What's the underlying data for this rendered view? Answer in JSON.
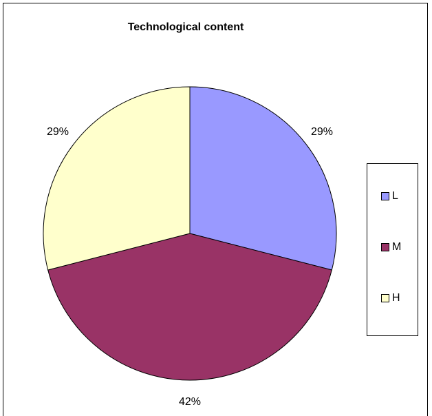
{
  "chart_data": {
    "type": "pie",
    "title": "Technological content",
    "slices": [
      {
        "label": "L",
        "value": 29,
        "value_label": "29%",
        "color": "#9999ff"
      },
      {
        "label": "M",
        "value": 42,
        "value_label": "42%",
        "color": "#993366"
      },
      {
        "label": "H",
        "value": 29,
        "value_label": "29%",
        "color": "#ffffcc"
      }
    ],
    "legend_position": "right",
    "start_angle_deg": 0,
    "direction": "clockwise"
  }
}
